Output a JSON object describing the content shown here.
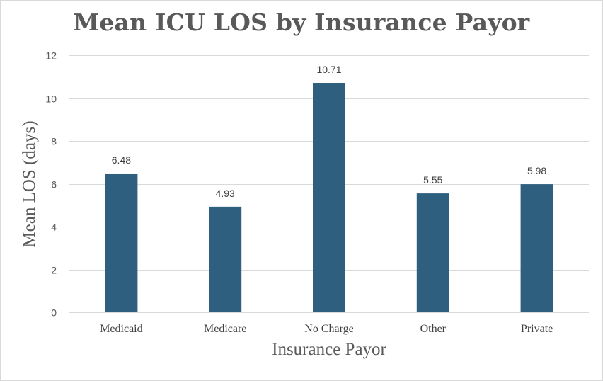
{
  "chart_data": {
    "type": "bar",
    "title": "Mean ICU LOS by Insurance Payor",
    "xlabel": "Insurance Payor",
    "ylabel": "Mean LOS (days)",
    "categories": [
      "Medicaid",
      "Medicare",
      "No Charge",
      "Other",
      "Private"
    ],
    "values": [
      6.48,
      4.93,
      10.71,
      5.55,
      5.98
    ],
    "data_labels": [
      "6.48",
      "4.93",
      "10.71",
      "5.55",
      "5.98"
    ],
    "ylim": [
      0,
      12
    ],
    "yticks": [
      0,
      2,
      4,
      6,
      8,
      10,
      12
    ],
    "grid": true,
    "legend": "none",
    "bar_color": "#2e5f7f",
    "gridline_color": "#d9d9d9"
  }
}
